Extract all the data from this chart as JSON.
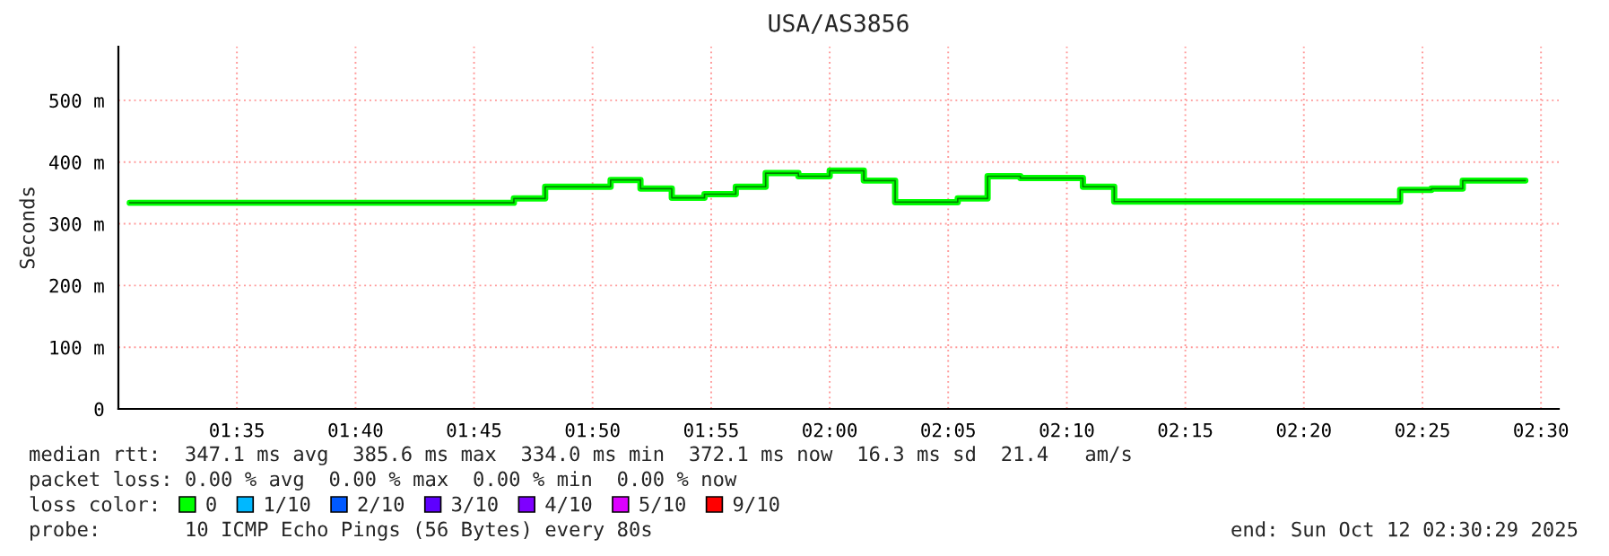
{
  "chart_data": {
    "type": "step",
    "title": "USA/AS3856",
    "ylabel": "Seconds",
    "x": [
      1.508,
      1.778,
      1.8,
      1.846,
      1.867,
      1.889,
      1.912,
      1.934,
      1.955,
      1.978,
      2.0,
      2.024,
      2.046,
      2.09,
      2.111,
      2.134,
      2.156,
      2.178,
      2.2,
      2.401,
      2.423,
      2.445,
      2.489
    ],
    "series": [
      {
        "name": "0",
        "color": "#00ff00",
        "values": [
          334,
          341,
          360,
          371,
          357,
          342,
          348,
          360,
          382,
          377,
          386,
          370,
          335,
          341,
          377,
          374,
          374,
          360,
          336,
          355,
          357,
          370,
          370
        ]
      },
      {
        "name": "1/10",
        "color": "#00b8ff",
        "values": [
          null,
          null,
          null,
          null,
          null,
          null,
          null,
          null,
          null,
          null,
          null,
          null,
          null,
          null,
          null,
          null,
          null,
          null,
          null,
          null,
          null,
          null,
          null
        ]
      },
      {
        "name": "2/10",
        "color": "#0059ff",
        "values": [
          null,
          null,
          null,
          null,
          null,
          null,
          null,
          null,
          null,
          null,
          null,
          null,
          null,
          null,
          null,
          null,
          null,
          null,
          null,
          null,
          null,
          null,
          null
        ]
      },
      {
        "name": "3/10",
        "color": "#5e00ff",
        "values": [
          null,
          null,
          null,
          null,
          null,
          null,
          null,
          null,
          null,
          null,
          null,
          null,
          null,
          null,
          null,
          null,
          null,
          null,
          null,
          null,
          null,
          null,
          null
        ]
      },
      {
        "name": "4/10",
        "color": "#7e00ff",
        "values": [
          null,
          null,
          null,
          null,
          null,
          null,
          null,
          null,
          null,
          null,
          null,
          null,
          null,
          null,
          null,
          null,
          null,
          null,
          null,
          null,
          null,
          null,
          null
        ]
      },
      {
        "name": "5/10",
        "color": "#dd00ff",
        "values": [
          null,
          null,
          null,
          null,
          null,
          null,
          null,
          null,
          null,
          null,
          null,
          null,
          null,
          null,
          null,
          null,
          null,
          null,
          null,
          null,
          null,
          null,
          null
        ]
      },
      {
        "name": "9/10",
        "color": "#ff0000",
        "values": [
          null,
          null,
          null,
          null,
          null,
          null,
          null,
          null,
          null,
          null,
          null,
          null,
          null,
          null,
          null,
          null,
          null,
          null,
          null,
          null,
          null,
          null,
          null
        ]
      }
    ],
    "legend_title": "loss color:",
    "legend": "bottom",
    "xlim": [
      1.5,
      2.5125
    ],
    "xticks": [
      {
        "value": 1.5833,
        "label": "01:35"
      },
      {
        "value": 1.6667,
        "label": "01:40"
      },
      {
        "value": 1.75,
        "label": "01:45"
      },
      {
        "value": 1.8333,
        "label": "01:50"
      },
      {
        "value": 1.9167,
        "label": "01:55"
      },
      {
        "value": 2.0,
        "label": "02:00"
      },
      {
        "value": 2.0833,
        "label": "02:05"
      },
      {
        "value": 2.1667,
        "label": "02:10"
      },
      {
        "value": 2.25,
        "label": "02:15"
      },
      {
        "value": 2.3333,
        "label": "02:20"
      },
      {
        "value": 2.4167,
        "label": "02:25"
      },
      {
        "value": 2.5,
        "label": "02:30"
      }
    ],
    "ylim": [
      0,
      587
    ],
    "yticks": [
      0,
      {
        "value": 100,
        "label": "100 m"
      },
      {
        "value": 200,
        "label": "200 m"
      },
      {
        "value": 300,
        "label": "300 m"
      },
      {
        "value": 400,
        "label": "400 m"
      },
      {
        "value": 500,
        "label": "500 m"
      }
    ],
    "grid": true,
    "annotations": [
      "median rtt:  347.1 ms avg  385.6 ms max  334.0 ms min  372.1 ms now  16.3 ms sd  21.4   am/s",
      "packet loss: 0.00 % avg  0.00 % max  0.00 % min  0.00 % now",
      "probe:       10 ICMP Echo Pings (56 Bytes) every 80s",
      "end: Sun Oct 12 02:30:29 2025"
    ]
  }
}
